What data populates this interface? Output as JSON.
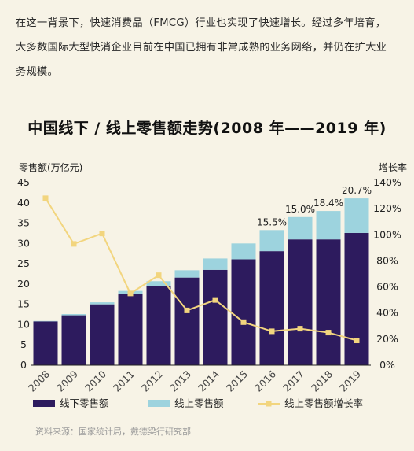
{
  "intro": {
    "line1": "在这一背景下，快速消费品（FMCG）行业也实现了快速增长。经过多年培育，",
    "line2": "大多数国际大型快消企业目前在中国已拥有非常成熟的业务网络，并仍在扩大业",
    "line3": "务规模。"
  },
  "chart_data": {
    "type": "bar",
    "title": "中国线下 / 线上零售额走势(2008 年——2019 年)",
    "ylabel_left": "零售额(万亿元)",
    "ylabel_right": "增长率",
    "categories": [
      "2008",
      "2009",
      "2010",
      "2011",
      "2012",
      "2013",
      "2014",
      "2015",
      "2016",
      "2017",
      "2018",
      "2019"
    ],
    "stacked": true,
    "ylim_left": [
      0,
      45
    ],
    "yticks_left": [
      "0",
      "5",
      "10",
      "15",
      "20",
      "25",
      "30",
      "35",
      "40",
      "45"
    ],
    "ylim_right": [
      0,
      140
    ],
    "yticks_right": [
      "0%",
      "20%",
      "40%",
      "60%",
      "80%",
      "100%",
      "120%",
      "140%"
    ],
    "series": [
      {
        "name": "线下零售额",
        "color": "#2d1b5e",
        "axis": "left",
        "values": [
          10.8,
          12.3,
          15.0,
          17.5,
          19.4,
          21.6,
          23.5,
          26.1,
          28.1,
          31.0,
          31.0,
          32.6
        ]
      },
      {
        "name": "线上零售额",
        "color": "#9dd3de",
        "axis": "left",
        "values": [
          0.1,
          0.3,
          0.5,
          0.8,
          1.3,
          1.8,
          2.8,
          3.9,
          5.2,
          5.5,
          7.0,
          8.5
        ]
      },
      {
        "name": "线上零售额增长率",
        "type": "line",
        "color": "#f2d57e",
        "axis": "right",
        "values": [
          128,
          93,
          101,
          55,
          69,
          42,
          50,
          33,
          26,
          28,
          25,
          19
        ]
      }
    ],
    "labels": [
      {
        "category": "2016",
        "text": "15.5%"
      },
      {
        "category": "2017",
        "text": "15.0%"
      },
      {
        "category": "2018",
        "text": "18.4%"
      },
      {
        "category": "2019",
        "text": "20.7%"
      }
    ],
    "grid": false,
    "legend_position": "bottom-left",
    "source": "资料来源：国家统计局，戴德梁行研究部"
  }
}
